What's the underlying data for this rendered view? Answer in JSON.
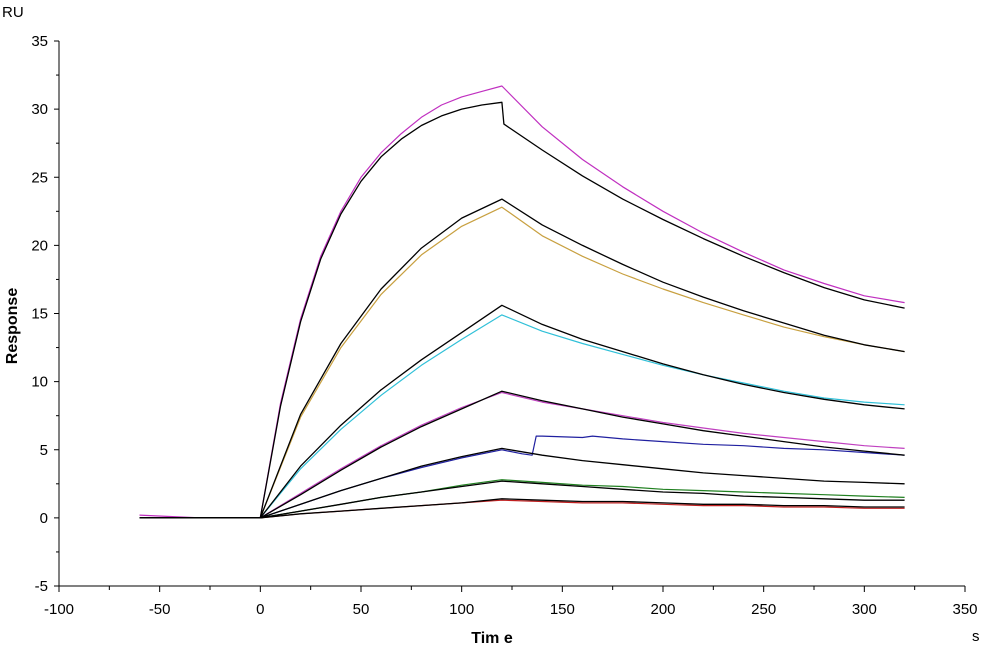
{
  "chart_data": {
    "type": "line",
    "xlabel": "Tim e",
    "ylabel": "Response",
    "x_unit": "s",
    "y_unit": "RU",
    "xlim": [
      -100,
      350
    ],
    "ylim": [
      -5,
      35
    ],
    "xticks": [
      -100,
      -50,
      0,
      50,
      100,
      150,
      200,
      250,
      300,
      350
    ],
    "yticks": [
      -5,
      0,
      5,
      10,
      15,
      20,
      25,
      30,
      35
    ],
    "x_tick_labels": [
      "-100",
      "-50",
      "0",
      "50",
      "100",
      "150",
      "200",
      "250",
      "300",
      "350"
    ],
    "y_tick_labels": [
      "-5",
      "0",
      "5",
      "10",
      "15",
      "20",
      "25",
      "30",
      "35"
    ],
    "grid": false,
    "legend": "none",
    "series": [
      {
        "color": "#c030c0",
        "kind": "measured",
        "x": [
          -60,
          -30,
          0,
          10,
          20,
          30,
          40,
          50,
          60,
          70,
          80,
          90,
          100,
          110,
          120,
          140,
          160,
          180,
          200,
          220,
          240,
          260,
          280,
          300,
          320
        ],
        "y": [
          0.2,
          0,
          0,
          8.4,
          14.6,
          19.2,
          22.5,
          25.0,
          26.8,
          28.2,
          29.4,
          30.3,
          30.9,
          31.3,
          31.7,
          28.7,
          26.3,
          24.3,
          22.5,
          20.9,
          19.5,
          18.2,
          17.2,
          16.3,
          15.8
        ]
      },
      {
        "color": "#000000",
        "kind": "fit",
        "x": [
          -60,
          -30,
          0,
          10,
          20,
          30,
          40,
          50,
          60,
          70,
          80,
          90,
          100,
          110,
          120,
          121,
          140,
          160,
          180,
          200,
          220,
          240,
          260,
          280,
          300,
          320
        ],
        "y": [
          0,
          0,
          0,
          8.2,
          14.4,
          19.0,
          22.3,
          24.7,
          26.5,
          27.8,
          28.8,
          29.5,
          30.0,
          30.3,
          30.5,
          28.9,
          27.0,
          25.1,
          23.4,
          21.9,
          20.5,
          19.2,
          18.0,
          16.9,
          16.0,
          15.4
        ]
      },
      {
        "color": "#c8a040",
        "kind": "measured",
        "x": [
          -60,
          -30,
          0,
          20,
          40,
          60,
          80,
          100,
          120,
          140,
          160,
          180,
          200,
          220,
          240,
          260,
          280,
          300,
          320
        ],
        "y": [
          0,
          0,
          0,
          7.4,
          12.5,
          16.4,
          19.3,
          21.4,
          22.8,
          20.7,
          19.2,
          17.9,
          16.8,
          15.8,
          14.9,
          14.0,
          13.3,
          12.7,
          12.2
        ]
      },
      {
        "color": "#000000",
        "kind": "fit",
        "x": [
          -60,
          -30,
          0,
          20,
          40,
          60,
          80,
          100,
          120,
          140,
          160,
          180,
          200,
          220,
          240,
          260,
          280,
          300,
          320
        ],
        "y": [
          0,
          0,
          0,
          7.6,
          12.8,
          16.8,
          19.8,
          22.0,
          23.4,
          21.5,
          20.0,
          18.6,
          17.3,
          16.2,
          15.2,
          14.3,
          13.4,
          12.7,
          12.2
        ]
      },
      {
        "color": "#30c0d8",
        "kind": "measured",
        "x": [
          -60,
          -30,
          0,
          20,
          40,
          60,
          80,
          100,
          120,
          140,
          160,
          180,
          200,
          220,
          240,
          260,
          280,
          300,
          320
        ],
        "y": [
          0,
          0,
          0,
          3.6,
          6.5,
          9.0,
          11.2,
          13.1,
          14.9,
          13.7,
          12.8,
          12.0,
          11.2,
          10.5,
          9.9,
          9.3,
          8.8,
          8.5,
          8.3
        ]
      },
      {
        "color": "#000000",
        "kind": "fit",
        "x": [
          -60,
          -30,
          0,
          20,
          40,
          60,
          80,
          100,
          120,
          140,
          160,
          180,
          200,
          220,
          240,
          260,
          280,
          300,
          320
        ],
        "y": [
          0,
          0,
          0,
          3.8,
          6.8,
          9.4,
          11.6,
          13.6,
          15.6,
          14.2,
          13.1,
          12.2,
          11.3,
          10.5,
          9.8,
          9.2,
          8.7,
          8.3,
          8.0
        ]
      },
      {
        "color": "#c040c0",
        "kind": "measured",
        "x": [
          -60,
          -30,
          0,
          20,
          40,
          60,
          80,
          100,
          120,
          140,
          160,
          180,
          200,
          220,
          240,
          260,
          280,
          300,
          320
        ],
        "y": [
          0,
          0,
          0,
          1.8,
          3.6,
          5.3,
          6.8,
          8.1,
          9.2,
          8.5,
          8.0,
          7.5,
          7.0,
          6.6,
          6.2,
          5.9,
          5.6,
          5.3,
          5.1
        ]
      },
      {
        "color": "#000000",
        "kind": "fit",
        "x": [
          -60,
          -30,
          0,
          20,
          40,
          60,
          80,
          100,
          120,
          140,
          160,
          180,
          200,
          220,
          240,
          260,
          280,
          300,
          320
        ],
        "y": [
          0,
          0,
          0,
          1.7,
          3.5,
          5.2,
          6.7,
          8.0,
          9.3,
          8.6,
          8.0,
          7.4,
          6.9,
          6.4,
          6.0,
          5.6,
          5.2,
          4.9,
          4.6
        ]
      },
      {
        "color": "#2020a0",
        "kind": "measured",
        "x": [
          -60,
          -30,
          0,
          20,
          40,
          60,
          80,
          100,
          120,
          130,
          135,
          137,
          140,
          160,
          165,
          180,
          200,
          220,
          240,
          260,
          280,
          300,
          320
        ],
        "y": [
          0,
          0,
          0,
          1.0,
          2.0,
          2.9,
          3.7,
          4.4,
          5.0,
          4.7,
          4.6,
          6.0,
          6.0,
          5.9,
          6.0,
          5.8,
          5.6,
          5.4,
          5.3,
          5.1,
          5.0,
          4.8,
          4.6
        ]
      },
      {
        "color": "#000000",
        "kind": "fit",
        "x": [
          -60,
          -30,
          0,
          20,
          40,
          60,
          80,
          100,
          120,
          140,
          160,
          180,
          200,
          220,
          240,
          260,
          280,
          300,
          320
        ],
        "y": [
          0,
          0,
          0,
          1.0,
          2.0,
          2.9,
          3.8,
          4.5,
          5.1,
          4.6,
          4.2,
          3.9,
          3.6,
          3.3,
          3.1,
          2.9,
          2.7,
          2.6,
          2.5
        ]
      },
      {
        "color": "#208020",
        "kind": "measured",
        "x": [
          -60,
          -30,
          0,
          20,
          40,
          60,
          80,
          100,
          120,
          140,
          160,
          180,
          200,
          220,
          240,
          260,
          280,
          300,
          320
        ],
        "y": [
          0,
          0,
          0,
          0.5,
          1.0,
          1.5,
          1.9,
          2.4,
          2.8,
          2.6,
          2.4,
          2.3,
          2.1,
          2.0,
          1.9,
          1.8,
          1.7,
          1.6,
          1.5
        ]
      },
      {
        "color": "#000000",
        "kind": "fit",
        "x": [
          -60,
          -30,
          0,
          20,
          40,
          60,
          80,
          100,
          120,
          140,
          160,
          180,
          200,
          220,
          240,
          260,
          280,
          300,
          320
        ],
        "y": [
          0,
          0,
          0,
          0.5,
          1.0,
          1.5,
          1.9,
          2.3,
          2.7,
          2.5,
          2.3,
          2.1,
          1.9,
          1.8,
          1.6,
          1.5,
          1.4,
          1.3,
          1.3
        ]
      },
      {
        "color": "#c02020",
        "kind": "measured",
        "x": [
          -60,
          -30,
          0,
          20,
          40,
          60,
          80,
          100,
          120,
          140,
          160,
          180,
          200,
          220,
          240,
          260,
          280,
          300,
          320
        ],
        "y": [
          0,
          0,
          0,
          0.3,
          0.5,
          0.7,
          0.9,
          1.1,
          1.3,
          1.2,
          1.1,
          1.1,
          1.0,
          0.9,
          0.9,
          0.8,
          0.8,
          0.7,
          0.7
        ]
      },
      {
        "color": "#000000",
        "kind": "fit",
        "x": [
          -60,
          -30,
          0,
          20,
          40,
          60,
          80,
          100,
          120,
          140,
          160,
          180,
          200,
          220,
          240,
          260,
          280,
          300,
          320
        ],
        "y": [
          0,
          0,
          0,
          0.3,
          0.5,
          0.7,
          0.9,
          1.1,
          1.4,
          1.3,
          1.2,
          1.2,
          1.1,
          1.0,
          1.0,
          0.9,
          0.9,
          0.8,
          0.8
        ]
      }
    ]
  }
}
